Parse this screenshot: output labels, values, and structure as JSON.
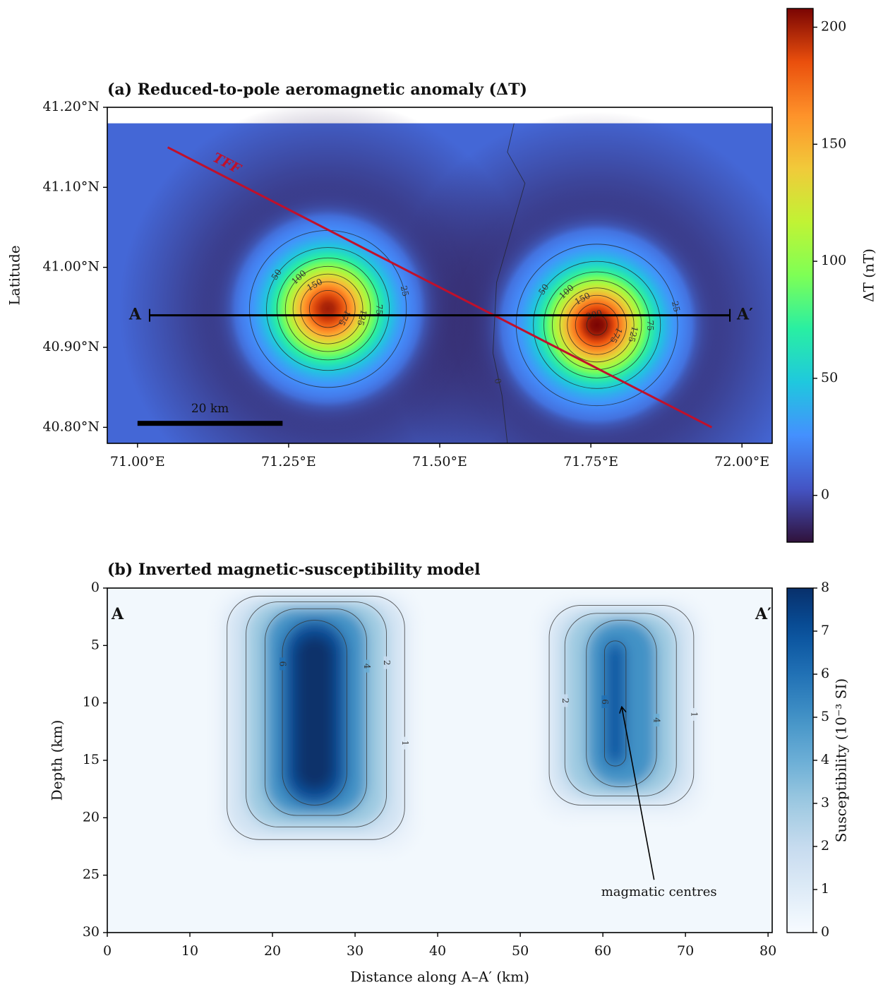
{
  "chart_data": [
    {
      "type": "map",
      "title": "(a) Reduced-to-pole aeromagnetic anomaly (ΔT)",
      "ylabel": "Latitude",
      "xlim": [
        70.95,
        72.05
      ],
      "ylim": [
        40.78,
        41.2
      ],
      "xticks": [
        {
          "value": 71.0,
          "label": "71.00°E"
        },
        {
          "value": 71.25,
          "label": "71.25°E"
        },
        {
          "value": 71.5,
          "label": "71.50°E"
        },
        {
          "value": 71.75,
          "label": "71.75°E"
        },
        {
          "value": 72.0,
          "label": "72.00°E"
        }
      ],
      "yticks": [
        {
          "value": 40.8,
          "label": "40.80°N"
        },
        {
          "value": 40.9,
          "label": "40.90°N"
        },
        {
          "value": 41.0,
          "label": "41.00°N"
        },
        {
          "value": 41.1,
          "label": "41.10°N"
        },
        {
          "value": 41.2,
          "label": "41.20°N"
        }
      ],
      "extent_lat": [
        40.78,
        41.18
      ],
      "colormap": "turbo",
      "clim": [
        -20,
        208
      ],
      "cticks": [
        0,
        50,
        100,
        150,
        200
      ],
      "colorbar_label": "ΔT (nT)",
      "background": 10,
      "halo": -15,
      "anomalies": [
        {
          "lon": 71.315,
          "lat": 40.948,
          "peak": 200,
          "sigma_km": 4.8
        },
        {
          "lon": 71.76,
          "lat": 40.928,
          "peak": 208,
          "sigma_km": 4.9
        }
      ],
      "contour_levels": [
        0,
        25,
        50,
        75,
        100,
        125,
        150,
        175,
        200
      ],
      "zero_contour": {
        "lon": [
          71.623,
          71.612,
          71.641,
          71.594,
          71.588,
          71.603,
          71.612
        ],
        "lat": [
          41.18,
          41.144,
          41.105,
          40.981,
          40.893,
          40.84,
          40.78
        ]
      },
      "fault": {
        "label": "TFF",
        "color": "#c0102b",
        "lon": [
          71.05,
          71.95
        ],
        "lat": [
          41.15,
          40.8
        ]
      },
      "profile": {
        "labels": [
          "A",
          "A′"
        ],
        "lon": [
          71.02,
          71.98
        ],
        "lat": 40.94
      },
      "scalebar": {
        "label": "20 km",
        "length_km": 20,
        "lon": [
          71.0,
          71.24
        ],
        "lat": 40.805
      }
    },
    {
      "type": "heatmap",
      "title": "(b) Inverted magnetic-susceptibility model",
      "xlabel": "Distance along A–A′ (km)",
      "ylabel": "Depth (km)",
      "xlim": [
        0,
        80.5
      ],
      "ylim": [
        30,
        0
      ],
      "xticks": [
        0,
        10,
        20,
        30,
        40,
        50,
        60,
        70,
        80
      ],
      "yticks": [
        0,
        5,
        10,
        15,
        20,
        25,
        30
      ],
      "colormap": "Blues",
      "clim": [
        0,
        8
      ],
      "cticks": [
        0,
        1,
        2,
        3,
        4,
        5,
        6,
        7,
        8
      ],
      "colorbar_label": "Susceptibility (10⁻³ SI)",
      "background": 0.2,
      "profile_labels": [
        "A",
        "A′"
      ],
      "bodies": [
        {
          "peak": 8,
          "contours": [
            {
              "level": 1,
              "x": [
                14.5,
                36.0
              ],
              "depth": [
                0.7,
                21.9
              ]
            },
            {
              "level": 2,
              "x": [
                16.8,
                33.8
              ],
              "depth": [
                1.2,
                20.8
              ]
            },
            {
              "level": 4,
              "x": [
                19.1,
                31.4
              ],
              "depth": [
                1.8,
                19.8
              ]
            },
            {
              "level": 6,
              "x": [
                21.2,
                29.0
              ],
              "depth": [
                2.8,
                18.9
              ]
            }
          ]
        },
        {
          "peak": 6.8,
          "contours": [
            {
              "level": 1,
              "x": [
                53.5,
                71.0
              ],
              "depth": [
                1.5,
                18.9
              ]
            },
            {
              "level": 2,
              "x": [
                55.4,
                68.9
              ],
              "depth": [
                2.2,
                18.1
              ]
            },
            {
              "level": 4,
              "x": [
                58.0,
                66.5
              ],
              "depth": [
                2.8,
                17.3
              ]
            },
            {
              "level": 6,
              "x": [
                60.2,
                62.8
              ],
              "depth": [
                4.6,
                15.5
              ]
            }
          ]
        }
      ],
      "annotation": "magmatic centres"
    }
  ]
}
